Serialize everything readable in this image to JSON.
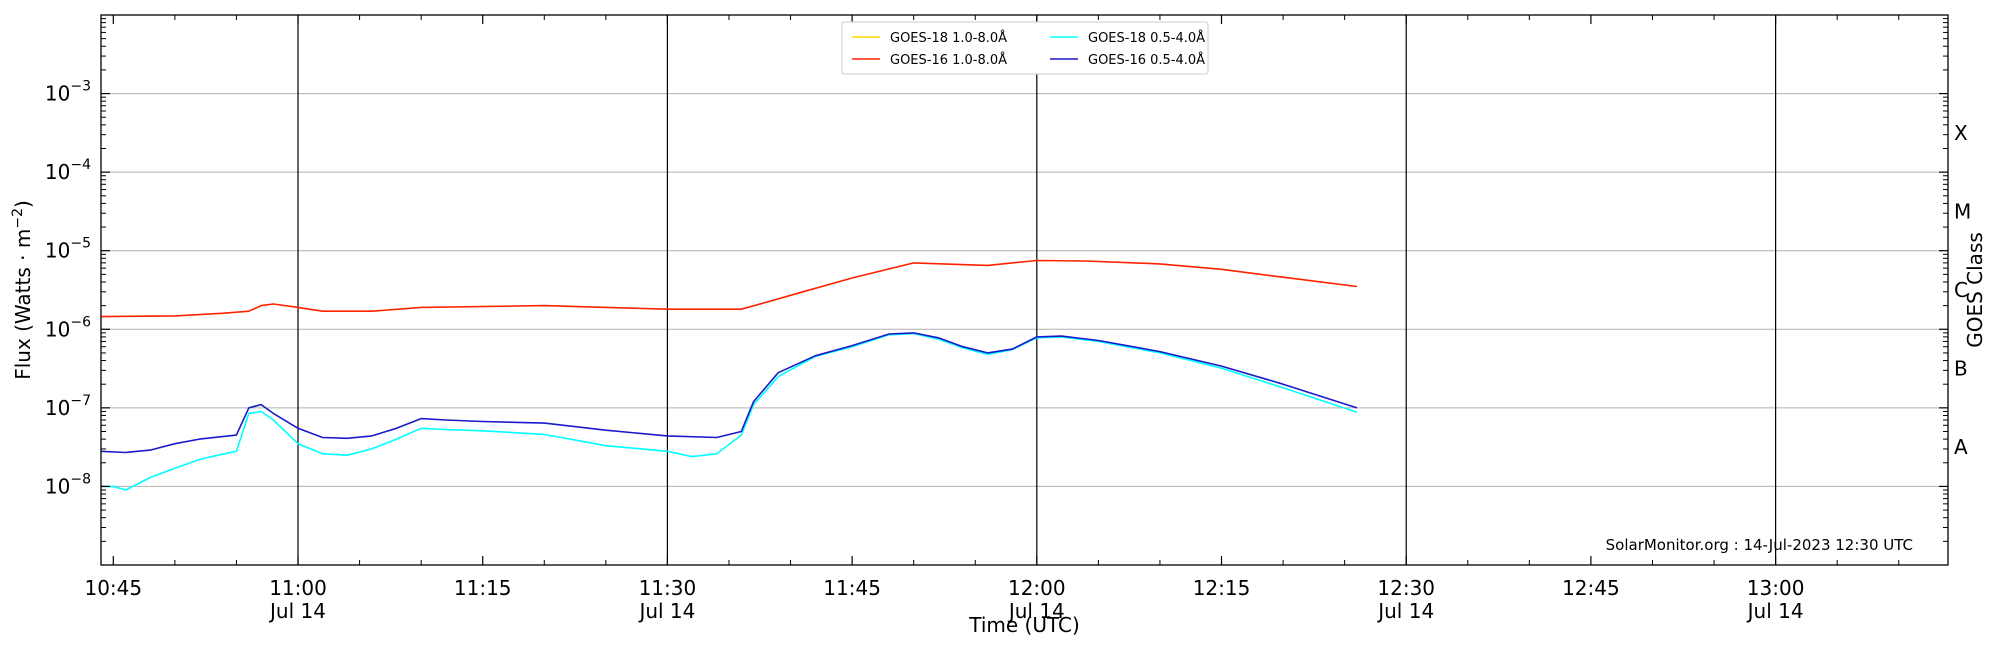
{
  "chart_data": {
    "type": "line",
    "title": "",
    "xlabel": "Time (UTC)",
    "ylabel_base": "Flux (Watts · m",
    "ylabel_exp": "−2",
    "ylabel_close": ")",
    "ylabel_right": "GOES Class",
    "yscale": "log",
    "ylim": [
      1e-09,
      0.01
    ],
    "xlim": [
      "10:44",
      "13:14"
    ],
    "grid": "horizontal",
    "legend_position": "top-center",
    "credit": "SolarMonitor.org : 14-Jul-2023 12:30 UTC",
    "y_ticks": [
      {
        "value": 1e-08,
        "base": "10",
        "exp": "−8"
      },
      {
        "value": 1e-07,
        "base": "10",
        "exp": "−7"
      },
      {
        "value": 1e-06,
        "base": "10",
        "exp": "−6"
      },
      {
        "value": 1e-05,
        "base": "10",
        "exp": "−5"
      },
      {
        "value": 0.0001,
        "base": "10",
        "exp": "−4"
      },
      {
        "value": 0.001,
        "base": "10",
        "exp": "−3"
      }
    ],
    "class_labels": [
      {
        "label": "A",
        "value": 3.16e-08
      },
      {
        "label": "B",
        "value": 3.16e-07
      },
      {
        "label": "C",
        "value": 3.16e-06
      },
      {
        "label": "M",
        "value": 3.16e-05
      },
      {
        "label": "X",
        "value": 0.000316
      }
    ],
    "x_ticks": [
      {
        "time": "10:45",
        "label": "10:45",
        "date": ""
      },
      {
        "time": "11:00",
        "label": "11:00",
        "date": "Jul 14"
      },
      {
        "time": "11:15",
        "label": "11:15",
        "date": ""
      },
      {
        "time": "11:30",
        "label": "11:30",
        "date": "Jul 14"
      },
      {
        "time": "11:45",
        "label": "11:45",
        "date": ""
      },
      {
        "time": "12:00",
        "label": "12:00",
        "date": "Jul 14"
      },
      {
        "time": "12:15",
        "label": "12:15",
        "date": ""
      },
      {
        "time": "12:30",
        "label": "12:30",
        "date": "Jul 14"
      },
      {
        "time": "12:45",
        "label": "12:45",
        "date": ""
      },
      {
        "time": "13:00",
        "label": "13:00",
        "date": "Jul 14"
      }
    ],
    "day_lines": [
      "11:00",
      "11:30",
      "12:00",
      "12:30",
      "13:00"
    ],
    "series": [
      {
        "name": "GOES-18 1.0-8.0Å",
        "color": "#ffd700",
        "points": []
      },
      {
        "name": "GOES-16 1.0-8.0Å",
        "color": "#ff2200",
        "points": [
          [
            "10:44",
            1.45e-06
          ],
          [
            "10:50",
            1.48e-06
          ],
          [
            "10:54",
            1.6e-06
          ],
          [
            "10:56",
            1.7e-06
          ],
          [
            "10:57",
            2e-06
          ],
          [
            "10:58",
            2.1e-06
          ],
          [
            "11:00",
            1.9e-06
          ],
          [
            "11:02",
            1.7e-06
          ],
          [
            "11:06",
            1.7e-06
          ],
          [
            "11:10",
            1.9e-06
          ],
          [
            "11:20",
            2e-06
          ],
          [
            "11:30",
            1.8e-06
          ],
          [
            "11:36",
            1.8e-06
          ],
          [
            "11:38",
            2.2e-06
          ],
          [
            "11:41",
            3e-06
          ],
          [
            "11:45",
            4.5e-06
          ],
          [
            "11:50",
            7e-06
          ],
          [
            "11:56",
            6.5e-06
          ],
          [
            "12:00",
            7.5e-06
          ],
          [
            "12:04",
            7.4e-06
          ],
          [
            "12:10",
            6.8e-06
          ],
          [
            "12:15",
            5.8e-06
          ],
          [
            "12:20",
            4.6e-06
          ],
          [
            "12:26",
            3.5e-06
          ]
        ]
      },
      {
        "name": "GOES-18 0.5-4.0Å",
        "color": "#00ffff",
        "points": [
          [
            "10:44",
            1e-08
          ],
          [
            "10:45",
            1e-08
          ],
          [
            "10:46",
            9e-09
          ],
          [
            "10:48",
            1.3e-08
          ],
          [
            "10:50",
            1.7e-08
          ],
          [
            "10:52",
            2.2e-08
          ],
          [
            "10:54",
            2.6e-08
          ],
          [
            "10:55",
            2.8e-08
          ],
          [
            "10:56",
            8.5e-08
          ],
          [
            "10:57",
            9e-08
          ],
          [
            "10:58",
            7e-08
          ],
          [
            "11:00",
            3.5e-08
          ],
          [
            "11:02",
            2.6e-08
          ],
          [
            "11:04",
            2.5e-08
          ],
          [
            "11:06",
            3e-08
          ],
          [
            "11:08",
            4e-08
          ],
          [
            "11:10",
            5.5e-08
          ],
          [
            "11:12",
            5.3e-08
          ],
          [
            "11:15",
            5.1e-08
          ],
          [
            "11:20",
            4.6e-08
          ],
          [
            "11:25",
            3.3e-08
          ],
          [
            "11:30",
            2.8e-08
          ],
          [
            "11:32",
            2.4e-08
          ],
          [
            "11:34",
            2.6e-08
          ],
          [
            "11:36",
            4.5e-08
          ],
          [
            "11:37",
            1.1e-07
          ],
          [
            "11:39",
            2.5e-07
          ],
          [
            "11:42",
            4.5e-07
          ],
          [
            "11:45",
            6e-07
          ],
          [
            "11:48",
            8.5e-07
          ],
          [
            "11:50",
            8.8e-07
          ],
          [
            "11:52",
            7.5e-07
          ],
          [
            "11:54",
            5.8e-07
          ],
          [
            "11:56",
            4.8e-07
          ],
          [
            "11:58",
            5.5e-07
          ],
          [
            "12:00",
            7.8e-07
          ],
          [
            "12:02",
            8e-07
          ],
          [
            "12:05",
            7e-07
          ],
          [
            "12:10",
            5e-07
          ],
          [
            "12:15",
            3.2e-07
          ],
          [
            "12:20",
            1.8e-07
          ],
          [
            "12:26",
            8.8e-08
          ]
        ]
      },
      {
        "name": "GOES-16 0.5-4.0Å",
        "color": "#1a1acc",
        "points": [
          [
            "10:44",
            2.8e-08
          ],
          [
            "10:46",
            2.7e-08
          ],
          [
            "10:48",
            2.9e-08
          ],
          [
            "10:50",
            3.5e-08
          ],
          [
            "10:52",
            4e-08
          ],
          [
            "10:55",
            4.5e-08
          ],
          [
            "10:56",
            1e-07
          ],
          [
            "10:57",
            1.1e-07
          ],
          [
            "10:58",
            8.5e-08
          ],
          [
            "11:00",
            5.5e-08
          ],
          [
            "11:02",
            4.2e-08
          ],
          [
            "11:04",
            4.1e-08
          ],
          [
            "11:06",
            4.4e-08
          ],
          [
            "11:08",
            5.5e-08
          ],
          [
            "11:10",
            7.3e-08
          ],
          [
            "11:12",
            7e-08
          ],
          [
            "11:15",
            6.7e-08
          ],
          [
            "11:20",
            6.4e-08
          ],
          [
            "11:25",
            5.2e-08
          ],
          [
            "11:30",
            4.4e-08
          ],
          [
            "11:34",
            4.2e-08
          ],
          [
            "11:36",
            5e-08
          ],
          [
            "11:37",
            1.2e-07
          ],
          [
            "11:39",
            2.8e-07
          ],
          [
            "11:42",
            4.6e-07
          ],
          [
            "11:45",
            6.2e-07
          ],
          [
            "11:48",
            8.7e-07
          ],
          [
            "11:50",
            9e-07
          ],
          [
            "11:52",
            7.8e-07
          ],
          [
            "11:54",
            6e-07
          ],
          [
            "11:56",
            5e-07
          ],
          [
            "11:58",
            5.6e-07
          ],
          [
            "12:00",
            8e-07
          ],
          [
            "12:02",
            8.2e-07
          ],
          [
            "12:05",
            7.2e-07
          ],
          [
            "12:10",
            5.2e-07
          ],
          [
            "12:15",
            3.4e-07
          ],
          [
            "12:20",
            2e-07
          ],
          [
            "12:26",
            1e-07
          ]
        ]
      }
    ]
  }
}
